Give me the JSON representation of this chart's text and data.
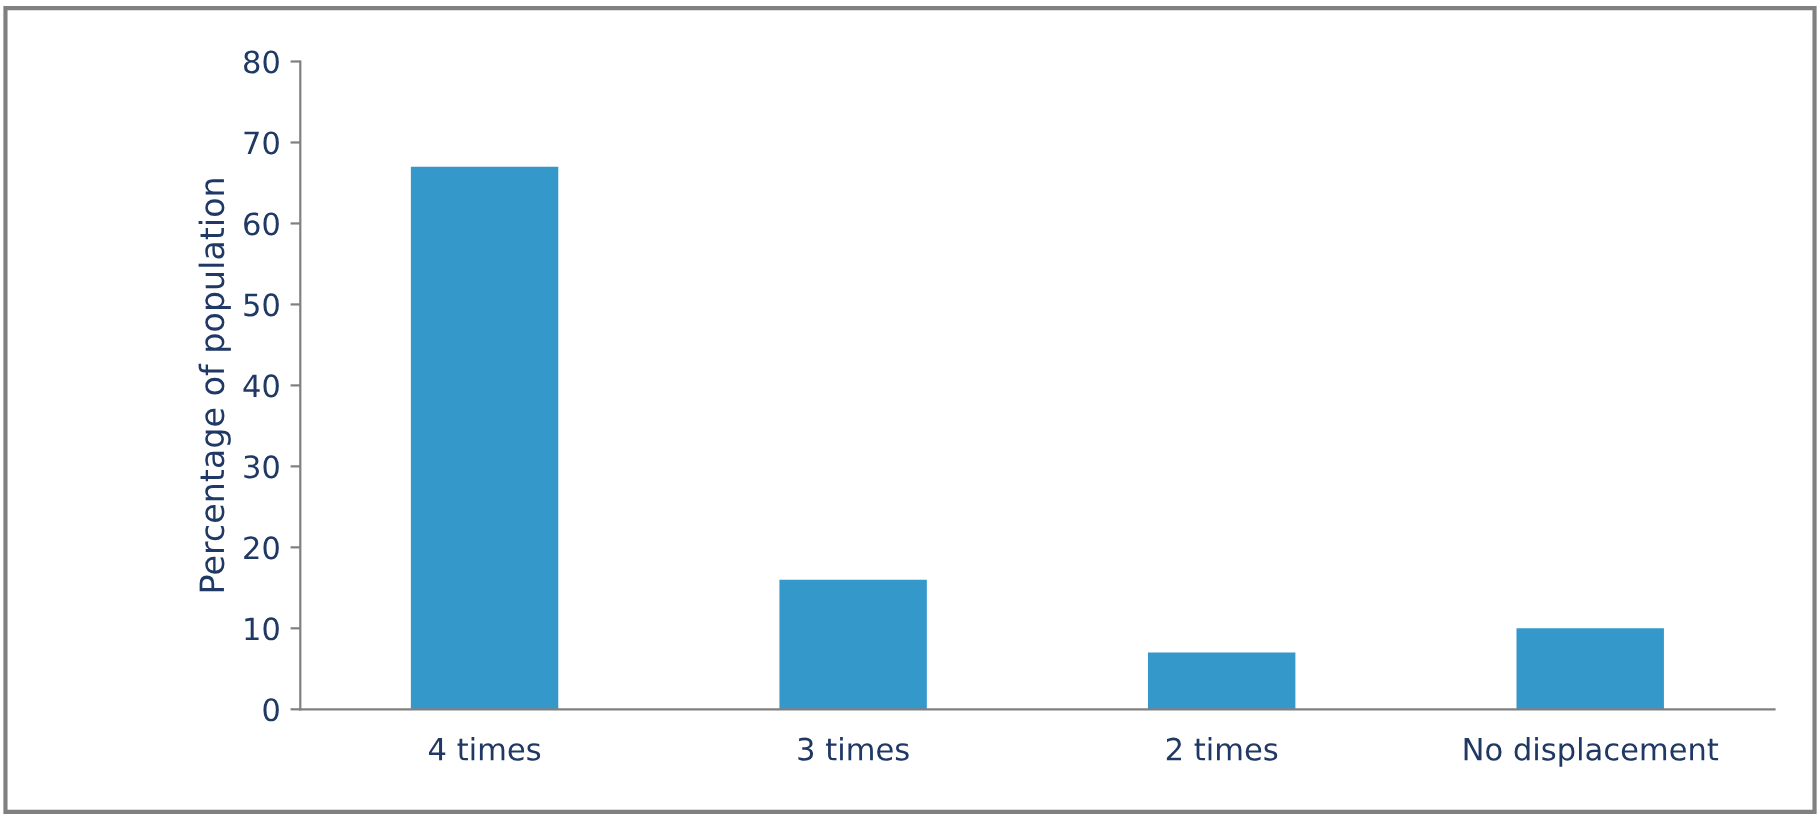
{
  "chart_data": {
    "type": "bar",
    "ylabel": "Percentage of population",
    "categories": [
      "4 times",
      "3 times",
      "2 times",
      "No displacement"
    ],
    "values": [
      67,
      16,
      7,
      10
    ],
    "color": "#3498cb",
    "ylim": [
      0,
      80
    ],
    "yticks": [
      0,
      10,
      20,
      30,
      40,
      50,
      60,
      70,
      80
    ],
    "grid": false,
    "legend": false
  }
}
